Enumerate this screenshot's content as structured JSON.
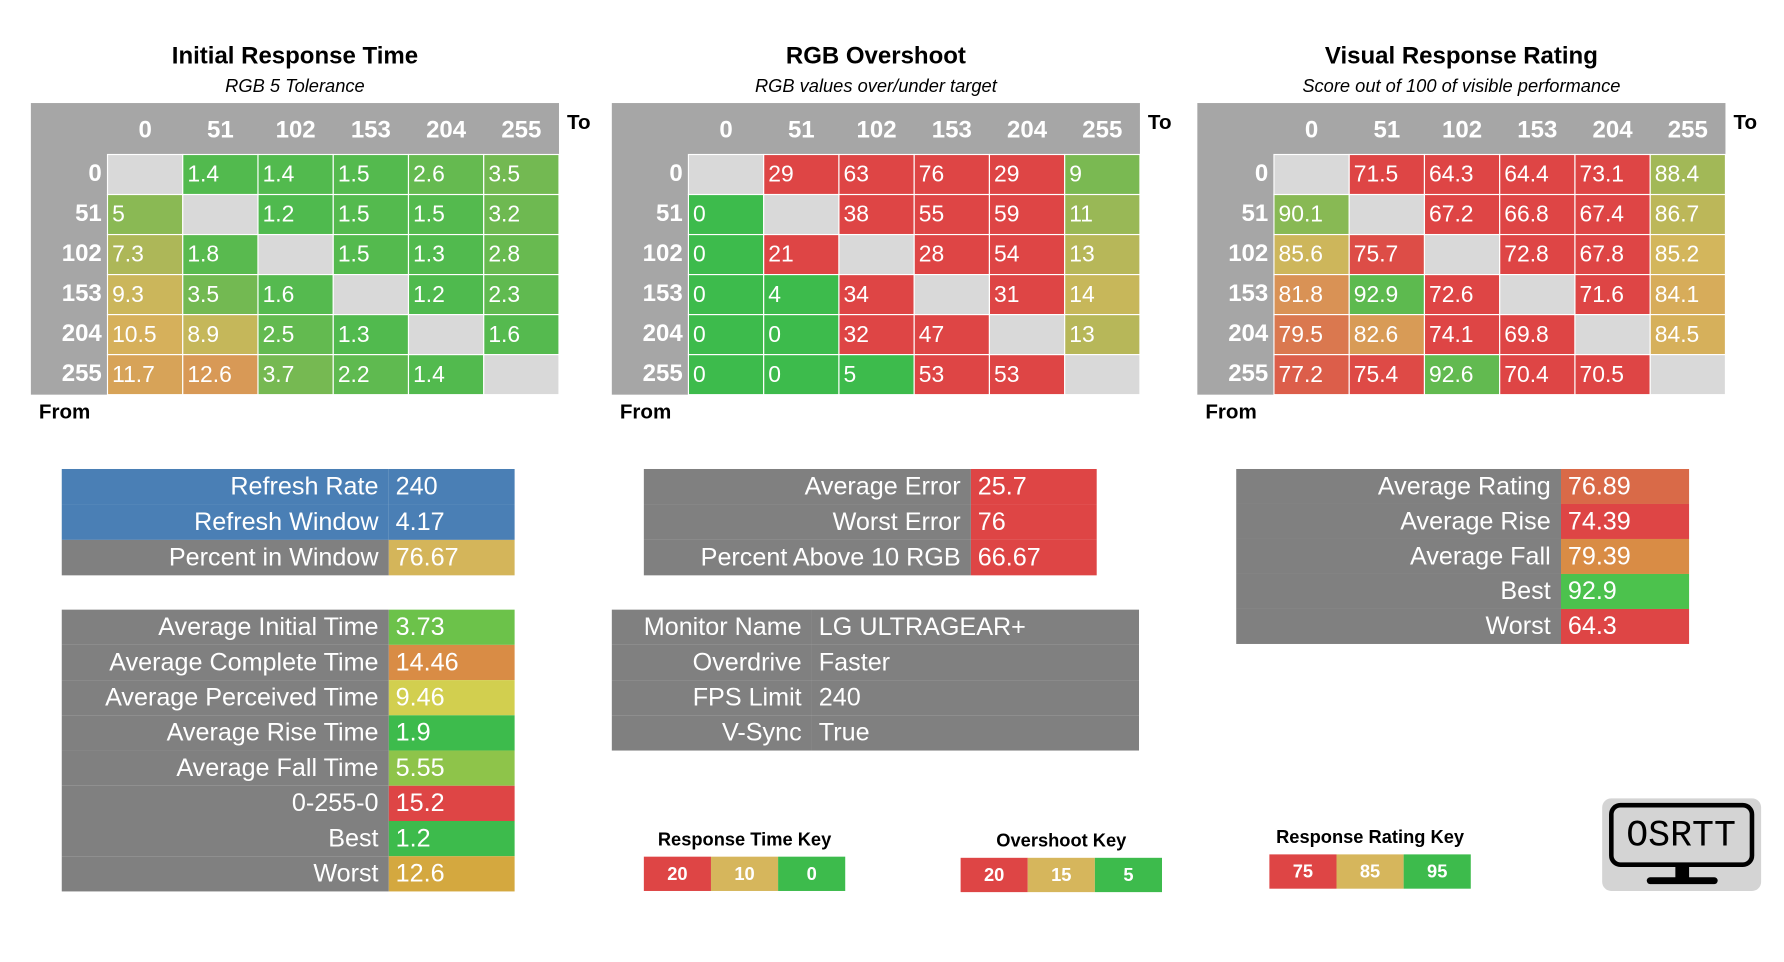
{
  "heatmaps": [
    {
      "title": "Initial Response Time",
      "subtitle": "RGB 5 Tolerance",
      "to": "To",
      "from": "From",
      "columns": [
        "0",
        "51",
        "102",
        "153",
        "204",
        "255"
      ],
      "rows": [
        {
          "label": "0",
          "cells": [
            null,
            1.4,
            1.4,
            1.5,
            2.6,
            3.5
          ]
        },
        {
          "label": "51",
          "cells": [
            5,
            null,
            1.2,
            1.5,
            1.5,
            3.2
          ]
        },
        {
          "label": "102",
          "cells": [
            7.3,
            1.8,
            null,
            1.5,
            1.3,
            2.8
          ]
        },
        {
          "label": "153",
          "cells": [
            9.3,
            3.5,
            1.6,
            null,
            1.2,
            2.3
          ]
        },
        {
          "label": "204",
          "cells": [
            10.5,
            8.9,
            2.5,
            1.3,
            null,
            1.6
          ]
        },
        {
          "label": "255",
          "cells": [
            11.7,
            12.6,
            3.7,
            2.2,
            1.4,
            null
          ]
        }
      ]
    },
    {
      "title": "RGB Overshoot",
      "subtitle": "RGB values over/under target",
      "to": "To",
      "from": "From",
      "columns": [
        "0",
        "51",
        "102",
        "153",
        "204",
        "255"
      ],
      "rows": [
        {
          "label": "0",
          "cells": [
            null,
            29,
            63,
            76,
            29,
            9
          ]
        },
        {
          "label": "51",
          "cells": [
            0,
            null,
            38,
            55,
            59,
            11
          ]
        },
        {
          "label": "102",
          "cells": [
            0,
            21,
            null,
            28,
            54,
            13
          ]
        },
        {
          "label": "153",
          "cells": [
            0,
            4,
            34,
            null,
            31,
            14
          ]
        },
        {
          "label": "204",
          "cells": [
            0,
            0,
            32,
            47,
            null,
            13
          ]
        },
        {
          "label": "255",
          "cells": [
            0,
            0,
            5,
            53,
            53,
            null
          ]
        }
      ]
    },
    {
      "title": "Visual Response Rating",
      "subtitle": "Score out of 100 of visible performance",
      "to": "To",
      "from": "From",
      "columns": [
        "0",
        "51",
        "102",
        "153",
        "204",
        "255"
      ],
      "rows": [
        {
          "label": "0",
          "cells": [
            null,
            71.5,
            64.3,
            64.4,
            73.1,
            88.4
          ]
        },
        {
          "label": "51",
          "cells": [
            90.1,
            null,
            67.2,
            66.8,
            67.4,
            86.7
          ]
        },
        {
          "label": "102",
          "cells": [
            85.6,
            75.7,
            null,
            72.8,
            67.8,
            85.2
          ]
        },
        {
          "label": "153",
          "cells": [
            81.8,
            92.9,
            72.6,
            null,
            71.6,
            84.1
          ]
        },
        {
          "label": "204",
          "cells": [
            79.5,
            82.6,
            74.1,
            69.8,
            null,
            84.5
          ]
        },
        {
          "label": "255",
          "cells": [
            77.2,
            75.4,
            92.6,
            70.4,
            70.5,
            null
          ]
        }
      ]
    }
  ],
  "stat_tables": [
    {
      "rows": [
        {
          "label": "Refresh Rate",
          "value": 240,
          "row_color": "#4a7fb5"
        },
        {
          "label": "Refresh Window",
          "value": 4.17,
          "row_color": "#4a7fb5"
        },
        {
          "label": "Percent in Window",
          "value": 76.67,
          "color": "#d4b55a"
        }
      ]
    },
    {
      "rows": [
        {
          "label": "Average Initial Time",
          "value": 3.73,
          "color": "#6cc24a"
        },
        {
          "label": "Average Complete Time",
          "value": 14.46,
          "color": "#d98c45"
        },
        {
          "label": "Average Perceived Time",
          "value": 9.46,
          "color": "#d2cf4f"
        },
        {
          "label": "Average Rise Time",
          "value": 1.9,
          "color": "#3dbb4c"
        },
        {
          "label": "Average Fall Time",
          "value": 5.55,
          "color": "#8ec44a"
        },
        {
          "label": "0-255-0",
          "value": 15.2,
          "color": "#de4545"
        },
        {
          "label": "Best",
          "value": 1.2,
          "color": "#3dbb4c"
        },
        {
          "label": "Worst",
          "value": 12.6,
          "color": "#d4a83f"
        }
      ]
    },
    {
      "rows": [
        {
          "label": "Average Error",
          "value": 25.7,
          "color": "#de4545"
        },
        {
          "label": "Worst Error",
          "value": 76,
          "color": "#de4545"
        },
        {
          "label": "Percent Above 10 RGB",
          "value": 66.67,
          "color": "#de4545"
        }
      ]
    },
    {
      "rows": [
        {
          "label": "Monitor Name",
          "value": "LG ULTRAGEAR+"
        },
        {
          "label": "Overdrive",
          "value": "Faster"
        },
        {
          "label": "FPS Limit",
          "value": 240
        },
        {
          "label": "V-Sync",
          "value": "True"
        }
      ]
    },
    {
      "rows": [
        {
          "label": "Average Rating",
          "value": 76.89,
          "color": "#d96a48"
        },
        {
          "label": "Average Rise",
          "value": 74.39,
          "color": "#de4545"
        },
        {
          "label": "Average Fall",
          "value": 79.39,
          "color": "#d98c45"
        },
        {
          "label": "Best",
          "value": 92.9,
          "color": "#4cc24d"
        },
        {
          "label": "Worst",
          "value": 64.3,
          "color": "#de4545"
        }
      ]
    }
  ],
  "keys": [
    {
      "title": "Response Time Key",
      "values": [
        20,
        10,
        0
      ],
      "colors": [
        "#de4545",
        "#d6b65c",
        "#3dbb4c"
      ]
    },
    {
      "title": "Overshoot Key",
      "values": [
        20,
        15,
        5
      ],
      "colors": [
        "#de4545",
        "#d6b65c",
        "#3dbb4c"
      ]
    },
    {
      "title": "Response Rating Key",
      "values": [
        75,
        85,
        95
      ],
      "colors": [
        "#de4545",
        "#d6b65c",
        "#3dbb4c"
      ]
    }
  ],
  "logo": {
    "text": "OSRTT"
  }
}
